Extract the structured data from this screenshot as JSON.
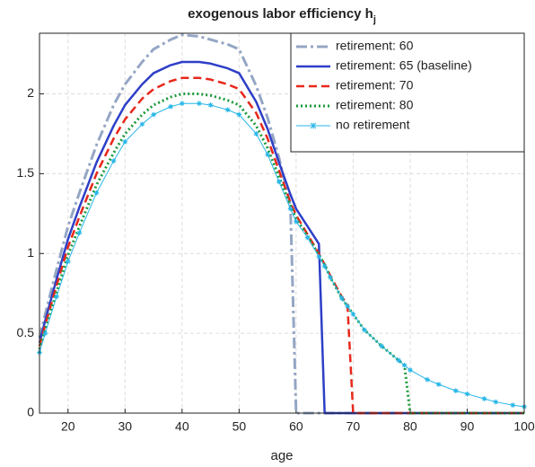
{
  "chart_data": {
    "type": "line",
    "title": "exogenous labor efficiency h",
    "title_subscript": "j",
    "x_label": "age",
    "x": [
      15,
      16,
      18,
      20,
      22,
      25,
      28,
      30,
      33,
      35,
      38,
      40,
      43,
      45,
      48,
      50,
      53,
      55,
      57,
      59,
      60,
      62,
      64,
      65,
      66,
      68,
      69,
      70,
      72,
      75,
      78,
      79,
      80,
      83,
      85,
      88,
      90,
      93,
      95,
      98,
      100
    ],
    "xlim": [
      15,
      100
    ],
    "xticks": [
      20,
      30,
      40,
      50,
      60,
      70,
      80,
      90,
      100
    ],
    "ylim": [
      0,
      2.38
    ],
    "yticks": [
      0,
      0.5,
      1,
      1.5,
      2
    ],
    "grid": true,
    "legend": "top-right",
    "series": [
      {
        "name": "retirement: 60",
        "color": "#94a6c4",
        "line_style": "dash-dot",
        "values": [
          0.47,
          0.62,
          0.9,
          1.17,
          1.38,
          1.68,
          1.93,
          2.06,
          2.2,
          2.28,
          2.34,
          2.37,
          2.36,
          2.34,
          2.31,
          2.28,
          2.05,
          1.85,
          1.6,
          1.3,
          0,
          0,
          0,
          0,
          0,
          0,
          0,
          0,
          0,
          0,
          0,
          0,
          0,
          0,
          0,
          0,
          0,
          0,
          0,
          0,
          0
        ]
      },
      {
        "name": "retirement: 65 (baseline)",
        "color": "#2e3fc7",
        "line_style": "solid",
        "values": [
          0.44,
          0.58,
          0.84,
          1.09,
          1.29,
          1.57,
          1.8,
          1.93,
          2.06,
          2.13,
          2.18,
          2.2,
          2.2,
          2.19,
          2.16,
          2.13,
          1.95,
          1.78,
          1.57,
          1.37,
          1.28,
          1.17,
          1.06,
          0,
          0,
          0,
          0,
          0,
          0,
          0,
          0,
          0,
          0,
          0,
          0,
          0,
          0,
          0,
          0,
          0,
          0
        ]
      },
      {
        "name": "retirement: 70",
        "color": "#e8281c",
        "line_style": "dashed",
        "values": [
          0.42,
          0.55,
          0.8,
          1.04,
          1.23,
          1.5,
          1.72,
          1.84,
          1.97,
          2.03,
          2.08,
          2.1,
          2.1,
          2.09,
          2.06,
          2.03,
          1.88,
          1.72,
          1.52,
          1.32,
          1.24,
          1.12,
          1.0,
          0.93,
          0.86,
          0.73,
          0.68,
          0,
          0,
          0,
          0,
          0,
          0,
          0,
          0,
          0,
          0,
          0,
          0,
          0,
          0
        ]
      },
      {
        "name": "retirement: 80",
        "color": "#1a9a3a",
        "line_style": "dotted",
        "values": [
          0.4,
          0.52,
          0.76,
          0.99,
          1.17,
          1.43,
          1.63,
          1.75,
          1.87,
          1.93,
          1.98,
          2.0,
          2.0,
          1.99,
          1.96,
          1.93,
          1.8,
          1.66,
          1.48,
          1.3,
          1.22,
          1.11,
          0.99,
          0.93,
          0.85,
          0.72,
          0.67,
          0.62,
          0.52,
          0.42,
          0.33,
          0.3,
          0,
          0,
          0,
          0,
          0,
          0,
          0,
          0,
          0
        ]
      },
      {
        "name": "no retirement",
        "color": "#26b6e8",
        "line_style": "star",
        "values": [
          0.38,
          0.5,
          0.73,
          0.95,
          1.13,
          1.38,
          1.58,
          1.7,
          1.81,
          1.87,
          1.92,
          1.94,
          1.94,
          1.93,
          1.9,
          1.87,
          1.75,
          1.62,
          1.45,
          1.28,
          1.2,
          1.1,
          0.98,
          0.92,
          0.85,
          0.72,
          0.67,
          0.62,
          0.52,
          0.42,
          0.33,
          0.3,
          0.27,
          0.21,
          0.18,
          0.14,
          0.12,
          0.09,
          0.07,
          0.05,
          0.04
        ]
      }
    ]
  }
}
